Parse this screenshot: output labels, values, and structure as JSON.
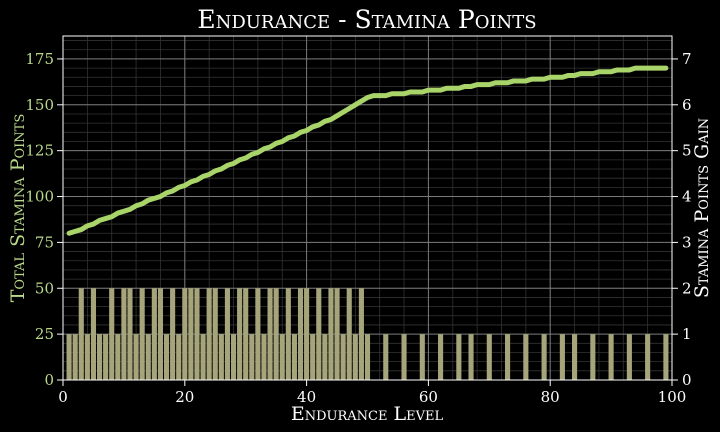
{
  "chart_data": {
    "type": "bar+line",
    "title": "Endurance - Stamina Points",
    "xlabel": "Endurance Level",
    "ylabel_left": "Total Stamina Points",
    "ylabel_right": "Stamina Points Gain",
    "xlim": [
      0,
      100
    ],
    "ylim_left": [
      0,
      187.5
    ],
    "ylim_right": [
      0,
      7.5
    ],
    "x_ticks": [
      0,
      20,
      40,
      60,
      80,
      100
    ],
    "y_left_ticks": [
      0,
      25,
      50,
      75,
      100,
      125,
      150,
      175
    ],
    "y_right_ticks": [
      0,
      1,
      2,
      3,
      4,
      5,
      6,
      7
    ],
    "grid": true,
    "colors": {
      "background": "#000000",
      "line": "#a8d46a",
      "bars": "#a5a47a",
      "left_axis_text": "#b8d88a",
      "text": "#ffffff",
      "grid_major": "#7a7a7a",
      "grid_minor": "#333333"
    },
    "series": [
      {
        "kind": "line",
        "axis": "left",
        "x_start": 1,
        "x_end": 99,
        "values": [
          80,
          81,
          82,
          84,
          85,
          87,
          88,
          89,
          91,
          92,
          93,
          95,
          96,
          98,
          99,
          100,
          102,
          103,
          105,
          106,
          108,
          109,
          111,
          112,
          114,
          115,
          117,
          118,
          120,
          121,
          123,
          124,
          126,
          127,
          129,
          130,
          132,
          133,
          135,
          136,
          138,
          139,
          141,
          142,
          144,
          146,
          148,
          150,
          152,
          154,
          155,
          155,
          155,
          156,
          156,
          156,
          157,
          157,
          157,
          158,
          158,
          158,
          159,
          159,
          159,
          160,
          160,
          161,
          161,
          161,
          162,
          162,
          162,
          163,
          163,
          163,
          164,
          164,
          164,
          165,
          165,
          165,
          166,
          166,
          167,
          167,
          167,
          168,
          168,
          168,
          169,
          169,
          169,
          170,
          170,
          170,
          170,
          170,
          170
        ]
      },
      {
        "kind": "bar",
        "axis": "right",
        "x_start": 1,
        "x_end": 99,
        "values": [
          1,
          1,
          2,
          1,
          2,
          1,
          1,
          2,
          1,
          2,
          2,
          1,
          2,
          1,
          2,
          2,
          1,
          2,
          1,
          2,
          2,
          2,
          1,
          2,
          2,
          1,
          2,
          1,
          2,
          2,
          1,
          2,
          1,
          2,
          2,
          1,
          2,
          1,
          2,
          2,
          1,
          2,
          1,
          2,
          2,
          1,
          2,
          1,
          2,
          1,
          0,
          0,
          1,
          0,
          0,
          1,
          0,
          0,
          1,
          0,
          0,
          1,
          0,
          0,
          1,
          0,
          1,
          0,
          0,
          1,
          0,
          0,
          1,
          0,
          0,
          1,
          0,
          0,
          1,
          0,
          0,
          1,
          0,
          1,
          0,
          0,
          1,
          0,
          0,
          1,
          0,
          0,
          1,
          0,
          0,
          1,
          0,
          0,
          1
        ]
      }
    ]
  }
}
